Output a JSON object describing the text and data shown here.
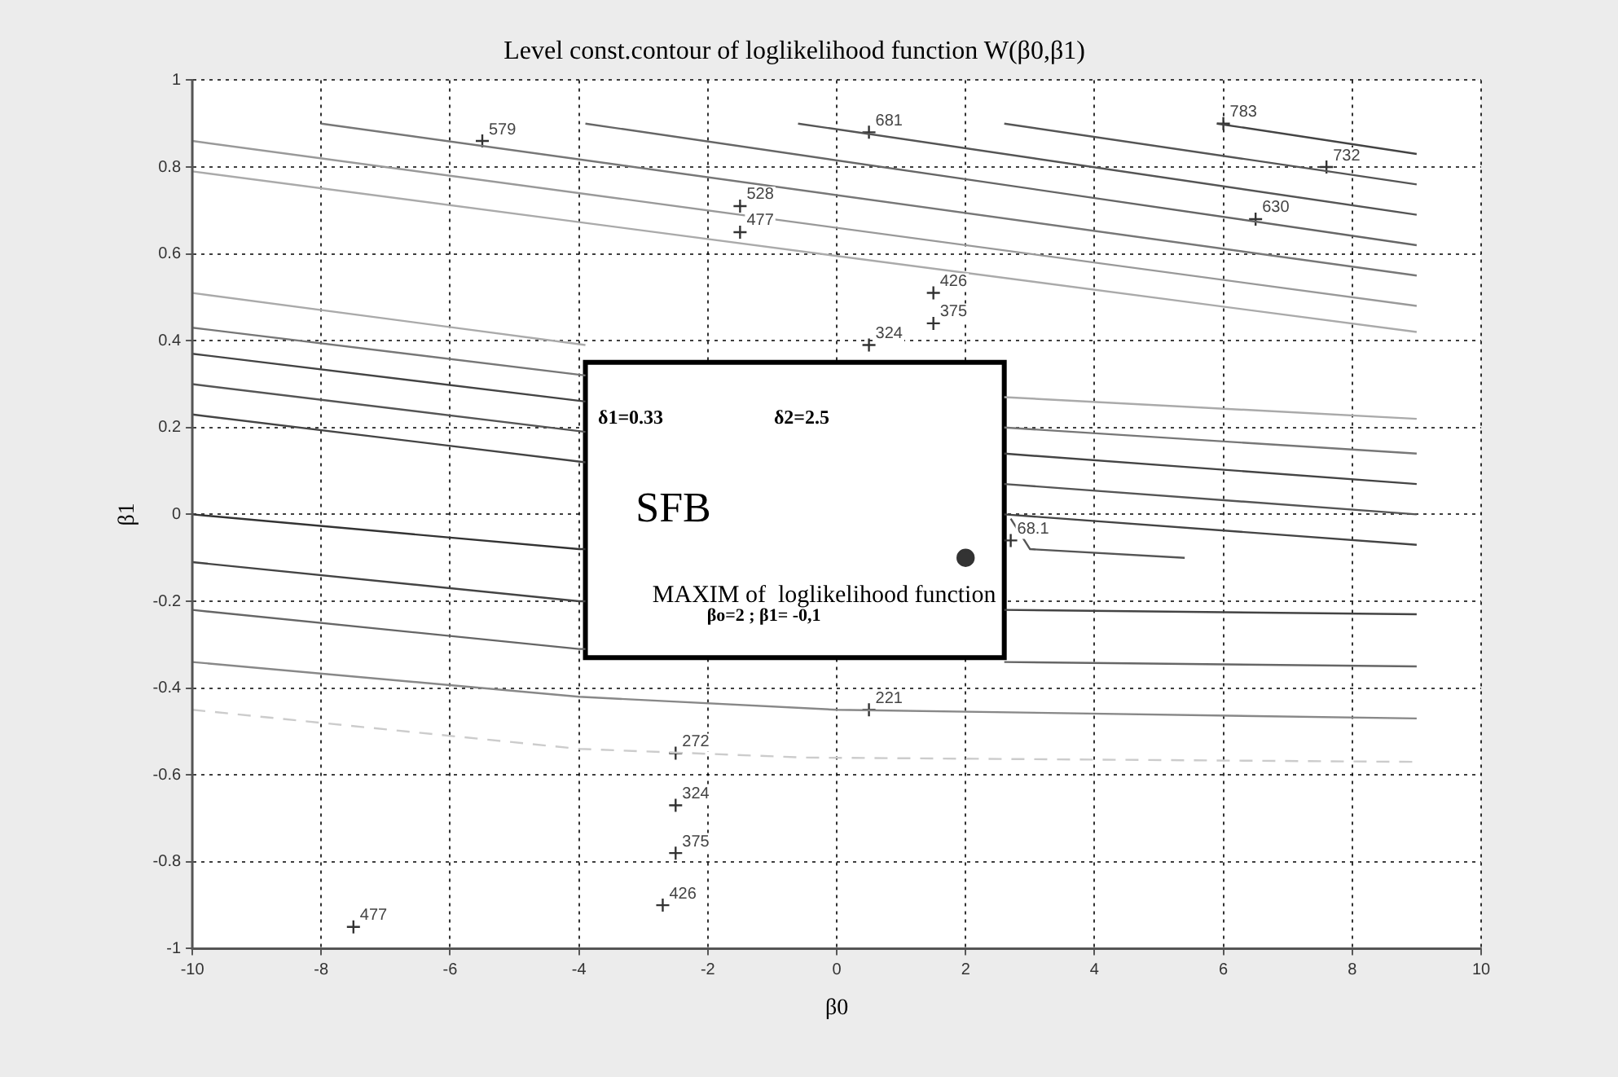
{
  "chart_data": {
    "type": "line",
    "title": "Level const.contour of loglikelihood function W(β0,β1)",
    "xlabel": "β0",
    "ylabel": "β1",
    "xlim": [
      -10,
      10
    ],
    "ylim": [
      -1,
      1
    ],
    "xticks": [
      -10,
      -8,
      -6,
      -4,
      -2,
      0,
      2,
      4,
      6,
      8,
      10
    ],
    "yticks": [
      -1,
      -0.8,
      -0.6,
      -0.4,
      -0.2,
      0,
      0.2,
      0.4,
      0.6,
      0.8,
      1
    ],
    "grid": true,
    "legend": false,
    "marker": "none",
    "line_style": "solid",
    "series": [
      {
        "color": "#444444",
        "x": [
          5.9,
          9
        ],
        "values": [
          0.9,
          0.83
        ]
      },
      {
        "color": "#555555",
        "x": [
          2.6,
          9
        ],
        "values": [
          0.9,
          0.76
        ]
      },
      {
        "color": "#555555",
        "x": [
          -0.6,
          9
        ],
        "values": [
          0.9,
          0.69
        ]
      },
      {
        "color": "#666666",
        "x": [
          -3.9,
          9
        ],
        "values": [
          0.9,
          0.62
        ]
      },
      {
        "color": "#777777",
        "x": [
          -8,
          9
        ],
        "values": [
          0.9,
          0.55
        ]
      },
      {
        "color": "#999999",
        "x": [
          -10,
          9
        ],
        "values": [
          0.86,
          0.48
        ]
      },
      {
        "color": "#aaaaaa",
        "x": [
          -10,
          9
        ],
        "values": [
          0.79,
          0.42
        ]
      },
      {
        "color": "#aaaaaa",
        "x": [
          -10,
          -3.9,
          0,
          2.6,
          9
        ],
        "values": [
          0.51,
          0.39,
          null,
          0.27,
          0.22
        ]
      },
      {
        "color": "#777777",
        "x": [
          -10,
          -3.9,
          0,
          2.6,
          9
        ],
        "values": [
          0.43,
          0.32,
          null,
          0.2,
          0.14
        ]
      },
      {
        "color": "#444444",
        "x": [
          -10,
          -3.9,
          0,
          2.6,
          9
        ],
        "values": [
          0.37,
          0.26,
          null,
          0.14,
          0.07
        ]
      },
      {
        "color": "#555555",
        "x": [
          -10,
          -3.9,
          0,
          2.6,
          9
        ],
        "values": [
          0.3,
          0.19,
          null,
          0.07,
          0.0
        ]
      },
      {
        "color": "#444444",
        "x": [
          -10,
          -3.9,
          0,
          2.6,
          9
        ],
        "values": [
          0.23,
          0.12,
          null,
          0.0,
          -0.07
        ]
      },
      {
        "color": "#555555",
        "x": [
          2.7,
          3.0,
          5.4
        ],
        "values": [
          -0.01,
          -0.08,
          -0.1
        ]
      },
      {
        "color": "#333333",
        "x": [
          -10,
          -4,
          -3.9
        ],
        "values": [
          0.0,
          -0.08,
          -0.08
        ]
      },
      {
        "color": "#444444",
        "x": [
          -10,
          -4,
          -3.9,
          0,
          2.6,
          9
        ],
        "values": [
          -0.11,
          -0.2,
          -0.2,
          null,
          -0.22,
          -0.23
        ]
      },
      {
        "color": "#666666",
        "x": [
          -10,
          -4,
          -3.9,
          0,
          2.6,
          9
        ],
        "values": [
          -0.22,
          -0.31,
          -0.31,
          null,
          -0.34,
          -0.35
        ]
      },
      {
        "color": "#888888",
        "x": [
          -10,
          -4,
          0,
          9
        ],
        "values": [
          -0.34,
          -0.42,
          -0.45,
          -0.47
        ]
      },
      {
        "color": "#cccccc",
        "line_style": "dashed",
        "x": [
          -10,
          -4,
          -0.5,
          9
        ],
        "values": [
          -0.45,
          -0.54,
          -0.56,
          -0.57
        ]
      },
      {
        "type": "scatter",
        "marker": "circle",
        "color": "#333333",
        "x": [
          2
        ],
        "values": [
          -0.1
        ]
      },
      {
        "type": "scatter",
        "marker": "cross",
        "color": "#333333",
        "x": [
          -5.5,
          0.5,
          6,
          7.6,
          6.5,
          -1.5,
          -1.5,
          1.5,
          1.5,
          0.5,
          2.7,
          0.5,
          -2.5,
          -2.5,
          -2.5,
          -2.7,
          -7.5
        ],
        "values": [
          0.86,
          0.88,
          0.9,
          0.8,
          0.68,
          0.71,
          0.65,
          0.51,
          0.44,
          0.39,
          -0.06,
          -0.45,
          -0.55,
          -0.67,
          -0.78,
          -0.9,
          -0.95
        ]
      }
    ],
    "annotations": [
      "δ1=0.33",
      "δ2=2.5",
      "SFB",
      "MAXIM of  loglikelihood function",
      "βo=2 ; β1= -0,1",
      {
        "text": "579",
        "x": -5.5,
        "y": 0.86
      },
      {
        "text": "681",
        "x": 0.5,
        "y": 0.88
      },
      {
        "text": "783",
        "x": 6,
        "y": 0.9
      },
      {
        "text": "732",
        "x": 7.6,
        "y": 0.8
      },
      {
        "text": "630",
        "x": 6.5,
        "y": 0.68
      },
      {
        "text": "528",
        "x": -1.5,
        "y": 0.71
      },
      {
        "text": "477",
        "x": -1.5,
        "y": 0.65
      },
      {
        "text": "426",
        "x": 1.5,
        "y": 0.51
      },
      {
        "text": "375",
        "x": 1.5,
        "y": 0.44
      },
      {
        "text": "324",
        "x": 0.5,
        "y": 0.39
      },
      {
        "text": "68.1",
        "x": 2.7,
        "y": -0.06
      },
      {
        "text": "221",
        "x": 0.5,
        "y": -0.45
      },
      {
        "text": "272",
        "x": -2.5,
        "y": -0.55
      },
      {
        "text": "324",
        "x": -2.5,
        "y": -0.67
      },
      {
        "text": "375",
        "x": -2.5,
        "y": -0.78
      },
      {
        "text": "426",
        "x": -2.7,
        "y": -0.9
      },
      {
        "text": "477",
        "x": -7.5,
        "y": -0.95
      }
    ]
  }
}
